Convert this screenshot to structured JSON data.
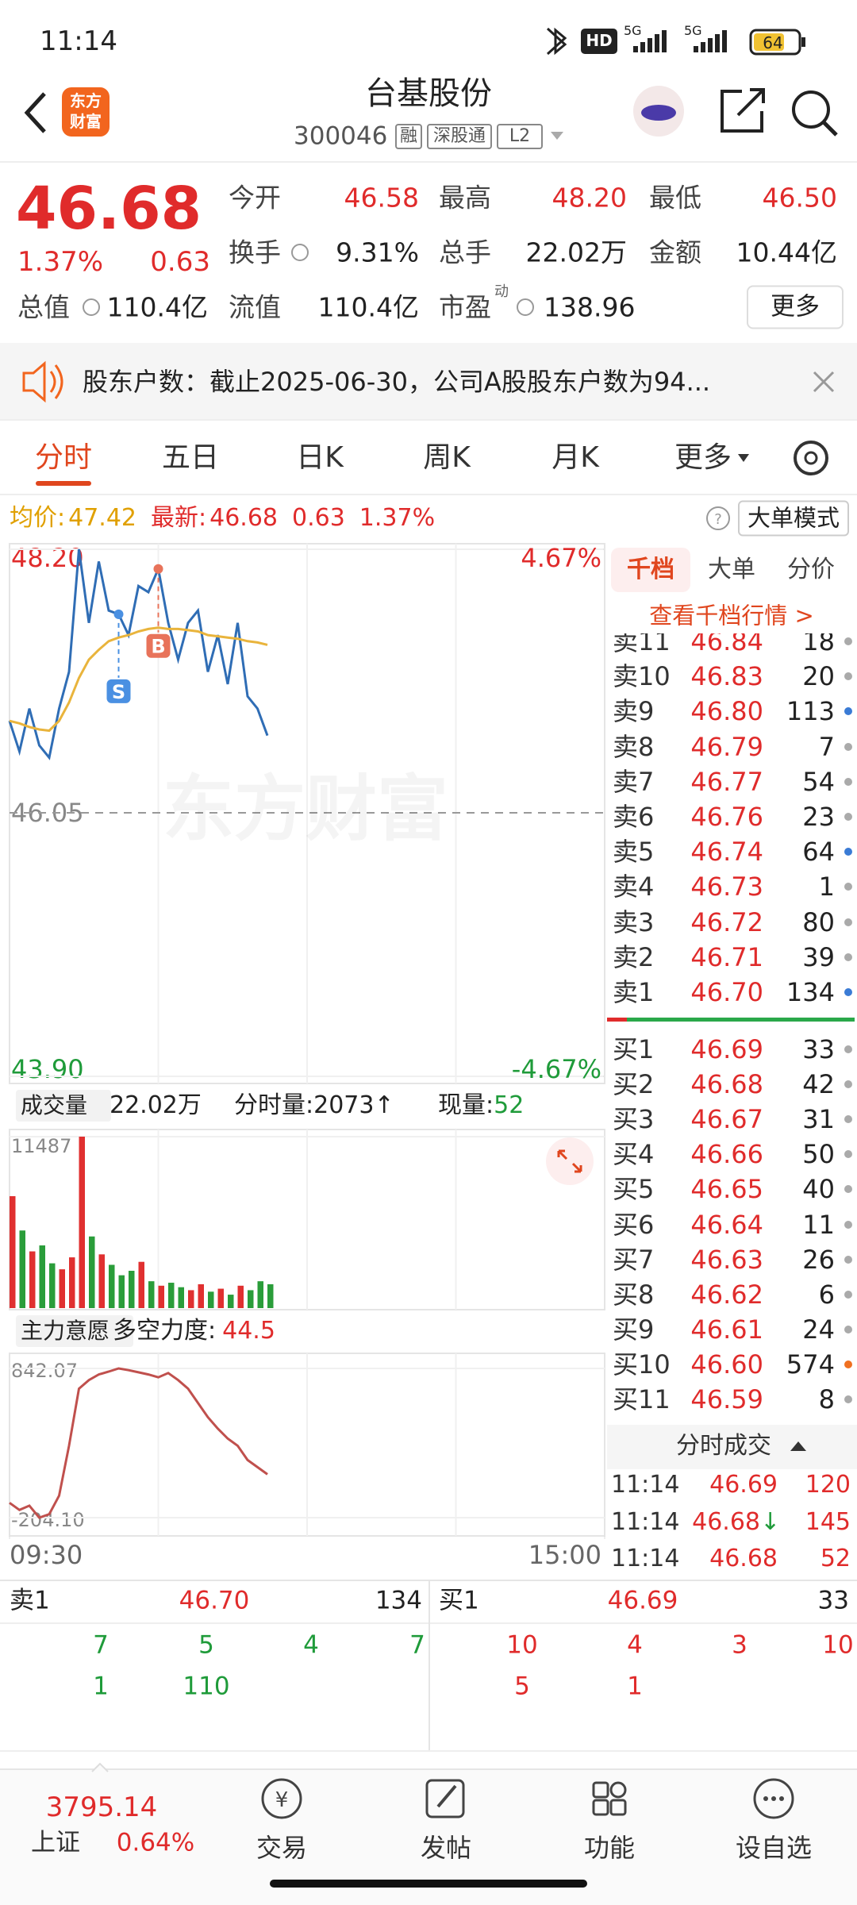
{
  "status_bar": {
    "time": "11:14",
    "hd": "HD",
    "network": "5G",
    "network2": "5G",
    "battery": "64"
  },
  "header": {
    "logo_lines": [
      "东方",
      "财富"
    ],
    "title": "台基股份",
    "code": "300046",
    "badges": [
      "融",
      "深股通",
      "L2"
    ]
  },
  "quote": {
    "price": "46.68",
    "change_pct": "1.37%",
    "change": "0.63",
    "fields": [
      [
        "今开",
        "46.58"
      ],
      [
        "最高",
        "48.20"
      ],
      [
        "最低",
        "46.50"
      ],
      [
        "换手",
        "9.31%"
      ],
      [
        "总手",
        "22.02万"
      ],
      [
        "金额",
        "10.44亿"
      ],
      [
        "总值",
        "110.4亿"
      ],
      [
        "流值",
        "110.4亿"
      ],
      [
        "市盈",
        "138.96"
      ]
    ],
    "pe_sup": "动",
    "more": "更多"
  },
  "notice": "股东户数：截止2025-06-30，公司A股股东户数为94...",
  "tabs": [
    "分时",
    "五日",
    "日K",
    "周K",
    "月K",
    "更多"
  ],
  "info_line": {
    "avg_label": "均价:",
    "avg": "47.42",
    "last_label": "最新:",
    "last": "46.68",
    "change": "0.63",
    "change_pct": "1.37%",
    "mode": "大单模式"
  },
  "watermark": "东方财富",
  "chart_data": [
    {
      "type": "line",
      "x": [
        0,
        4,
        8,
        12,
        16,
        20,
        24,
        28,
        32,
        36,
        40,
        44,
        48,
        52,
        56,
        60,
        64,
        68,
        72,
        76,
        80,
        84,
        88,
        92,
        96,
        100,
        104
      ],
      "xlim": [
        0,
        240
      ],
      "ylim": [
        43.9,
        48.2
      ],
      "yticks": [
        {
          "value": 48.2,
          "label": "48.20"
        },
        46.05,
        {
          "value": 43.9,
          "label": "43.90"
        }
      ],
      "y2lim": [
        -4.67,
        4.67
      ],
      "y2ticks": [
        {
          "value": 4.67,
          "label": "4.67%"
        },
        {
          "value": -4.67,
          "label": "-4.67%"
        }
      ],
      "grid": true,
      "series": [
        {
          "color": "#2f6db5",
          "values": [
            46.8,
            46.55,
            46.9,
            46.6,
            46.5,
            46.9,
            47.2,
            48.2,
            47.6,
            48.1,
            47.7,
            47.67,
            47.5,
            47.9,
            47.85,
            48.04,
            47.6,
            47.3,
            47.6,
            47.7,
            47.2,
            47.5,
            47.1,
            47.6,
            47.0,
            46.9,
            46.68
          ]
        },
        {
          "color": "#e9b43c",
          "values": [
            46.8,
            46.78,
            46.75,
            46.73,
            46.72,
            46.8,
            46.95,
            47.15,
            47.3,
            47.38,
            47.45,
            47.48,
            47.5,
            47.53,
            47.55,
            47.56,
            47.55,
            47.55,
            47.54,
            47.53,
            47.5,
            47.49,
            47.48,
            47.47,
            47.45,
            47.44,
            47.42
          ]
        }
      ],
      "annotations": [
        {
          "text": "S",
          "x": 44,
          "y": 47.67,
          "color": "#4a90e2"
        },
        {
          "text": "B",
          "x": 60,
          "y": 48.04,
          "color": "#e8735a"
        }
      ]
    },
    {
      "type": "bar",
      "x": [
        0,
        4,
        8,
        12,
        16,
        20,
        24,
        28,
        32,
        36,
        40,
        44,
        48,
        52,
        56,
        60,
        64,
        68,
        72,
        76,
        80,
        84,
        88,
        92,
        96,
        100,
        104
      ],
      "xlim": [
        0,
        240
      ],
      "ylim": [
        0,
        11487
      ],
      "yticks": [
        11487
      ],
      "series": [
        {
          "values": [
            7500,
            5200,
            3800,
            4200,
            3000,
            2600,
            3400,
            11487,
            4800,
            3600,
            2900,
            2200,
            2500,
            3100,
            1800,
            1500,
            1700,
            1400,
            1200,
            1600,
            1100,
            1300,
            900,
            1500,
            1200,
            1800,
            1600
          ],
          "colors": [
            "#e03030",
            "#2a9d3a",
            "#e03030",
            "#2a9d3a",
            "#2a9d3a",
            "#e03030",
            "#e03030",
            "#e03030",
            "#2a9d3a",
            "#e03030",
            "#2a9d3a",
            "#2a9d3a",
            "#2a9d3a",
            "#e03030",
            "#2a9d3a",
            "#e03030",
            "#2a9d3a",
            "#2a9d3a",
            "#e03030",
            "#e03030",
            "#2a9d3a",
            "#e03030",
            "#2a9d3a",
            "#e03030",
            "#2a9d3a",
            "#2a9d3a",
            "#2a9d3a"
          ]
        }
      ]
    },
    {
      "type": "line",
      "x": [
        0,
        4,
        8,
        12,
        16,
        20,
        24,
        28,
        32,
        36,
        40,
        44,
        48,
        52,
        56,
        60,
        64,
        68,
        72,
        76,
        80,
        84,
        88,
        92,
        96,
        100,
        104
      ],
      "xlim": [
        0,
        240
      ],
      "xticks": [
        {
          "value": 0,
          "label": "09:30"
        },
        {
          "value": 240,
          "label": "15:00"
        }
      ],
      "ylim": [
        -204.1,
        842.07
      ],
      "yticks": [
        842.07,
        {
          "value": -204.1,
          "label": "-204.10"
        }
      ],
      "series": [
        {
          "color": "#c0504d",
          "values": [
            -100,
            -150,
            -120,
            -204.1,
            -180,
            -50,
            300,
            700,
            760,
            800,
            820,
            842.07,
            830,
            815,
            800,
            780,
            810,
            760,
            700,
            600,
            500,
            420,
            350,
            300,
            200,
            150,
            100
          ]
        }
      ]
    }
  ],
  "volume_header": {
    "label": "成交量",
    "total": "22.02万",
    "minute_vol": "分时量:2073↑",
    "now_label": "现量:",
    "now": "52"
  },
  "indicator_header": {
    "label": "主力意愿",
    "name": "多空力度:",
    "value": "44.5"
  },
  "order_book": {
    "tabs": [
      "千档",
      "大单",
      "分价"
    ],
    "link": "查看千档行情 >",
    "asks": [
      {
        "label": "卖11",
        "price": "46.84",
        "qty": "18",
        "dot": "#aaaaaa"
      },
      {
        "label": "卖10",
        "price": "46.83",
        "qty": "20",
        "dot": "#aaaaaa"
      },
      {
        "label": "卖9",
        "price": "46.80",
        "qty": "113",
        "dot": "#3a7bd5"
      },
      {
        "label": "卖8",
        "price": "46.79",
        "qty": "7",
        "dot": "#aaaaaa"
      },
      {
        "label": "卖7",
        "price": "46.77",
        "qty": "54",
        "dot": "#aaaaaa"
      },
      {
        "label": "卖6",
        "price": "46.76",
        "qty": "23",
        "dot": "#aaaaaa"
      },
      {
        "label": "卖5",
        "price": "46.74",
        "qty": "64",
        "dot": "#3a7bd5"
      },
      {
        "label": "卖4",
        "price": "46.73",
        "qty": "1",
        "dot": "#aaaaaa"
      },
      {
        "label": "卖3",
        "price": "46.72",
        "qty": "80",
        "dot": "#aaaaaa"
      },
      {
        "label": "卖2",
        "price": "46.71",
        "qty": "39",
        "dot": "#aaaaaa"
      },
      {
        "label": "卖1",
        "price": "46.70",
        "qty": "134",
        "dot": "#3a7bd5"
      }
    ],
    "bids": [
      {
        "label": "买1",
        "price": "46.69",
        "qty": "33",
        "dot": "#aaaaaa"
      },
      {
        "label": "买2",
        "price": "46.68",
        "qty": "42",
        "dot": "#aaaaaa"
      },
      {
        "label": "买3",
        "price": "46.67",
        "qty": "31",
        "dot": "#aaaaaa"
      },
      {
        "label": "买4",
        "price": "46.66",
        "qty": "50",
        "dot": "#aaaaaa"
      },
      {
        "label": "买5",
        "price": "46.65",
        "qty": "40",
        "dot": "#aaaaaa"
      },
      {
        "label": "买6",
        "price": "46.64",
        "qty": "11",
        "dot": "#aaaaaa"
      },
      {
        "label": "买7",
        "price": "46.63",
        "qty": "26",
        "dot": "#aaaaaa"
      },
      {
        "label": "买8",
        "price": "46.62",
        "qty": "6",
        "dot": "#aaaaaa"
      },
      {
        "label": "买9",
        "price": "46.61",
        "qty": "24",
        "dot": "#aaaaaa"
      },
      {
        "label": "买10",
        "price": "46.60",
        "qty": "574",
        "dot": "#f07020"
      },
      {
        "label": "买11",
        "price": "46.59",
        "qty": "8",
        "dot": "#aaaaaa"
      }
    ]
  },
  "trades": {
    "title": "分时成交",
    "rows": [
      [
        "11:14",
        "46.69",
        "120"
      ],
      [
        "11:14",
        "46.68",
        "145",
        "↓"
      ],
      [
        "11:14",
        "46.68",
        "52"
      ]
    ]
  },
  "summary": {
    "ask": [
      "卖1",
      "46.70",
      "134"
    ],
    "bid": [
      "买1",
      "46.69",
      "33"
    ],
    "ask_rows": [
      [
        "7",
        "5",
        "4",
        "7"
      ],
      [
        "1",
        "110"
      ]
    ],
    "bid_rows": [
      [
        "10",
        "4",
        "3",
        "10"
      ],
      [
        "5",
        "1"
      ]
    ]
  },
  "bottom_nav": {
    "index_value": "3795.14",
    "index_name": "上证",
    "index_change": "0.64%",
    "items": [
      "交易",
      "发帖",
      "功能",
      "设自选"
    ]
  }
}
